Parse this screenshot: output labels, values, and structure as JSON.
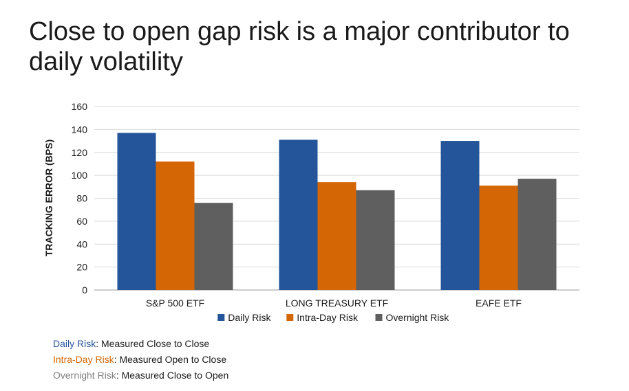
{
  "title": "Close to open gap risk is a major contributor to daily volatility",
  "chart_data": {
    "type": "bar",
    "categories": [
      "S&P 500 ETF",
      "LONG TREASURY ETF",
      "EAFE ETF"
    ],
    "series": [
      {
        "name": "Daily Risk",
        "color": "#24549a",
        "values": [
          137,
          131,
          130
        ]
      },
      {
        "name": "Intra-Day Risk",
        "color": "#d46605",
        "values": [
          112,
          94,
          91
        ]
      },
      {
        "name": "Overnight Risk",
        "color": "#5f5f5f",
        "values": [
          76,
          87,
          97
        ]
      }
    ],
    "ylabel": "TRACKING ERROR (BPS)",
    "ylim": [
      0,
      160
    ],
    "yticks": [
      0,
      20,
      40,
      60,
      80,
      100,
      120,
      140,
      160
    ],
    "grid": true,
    "legend": "bottom"
  },
  "notes": [
    {
      "term": "Daily Risk",
      "text": ": Measured Close to Close",
      "color": "#24549a"
    },
    {
      "term": "Intra-Day Risk",
      "text": ": Measured Open to Close",
      "color": "#d46605"
    },
    {
      "term": "Overnight Risk",
      "text": ": Measured Close to Open",
      "color": "#808080"
    }
  ]
}
